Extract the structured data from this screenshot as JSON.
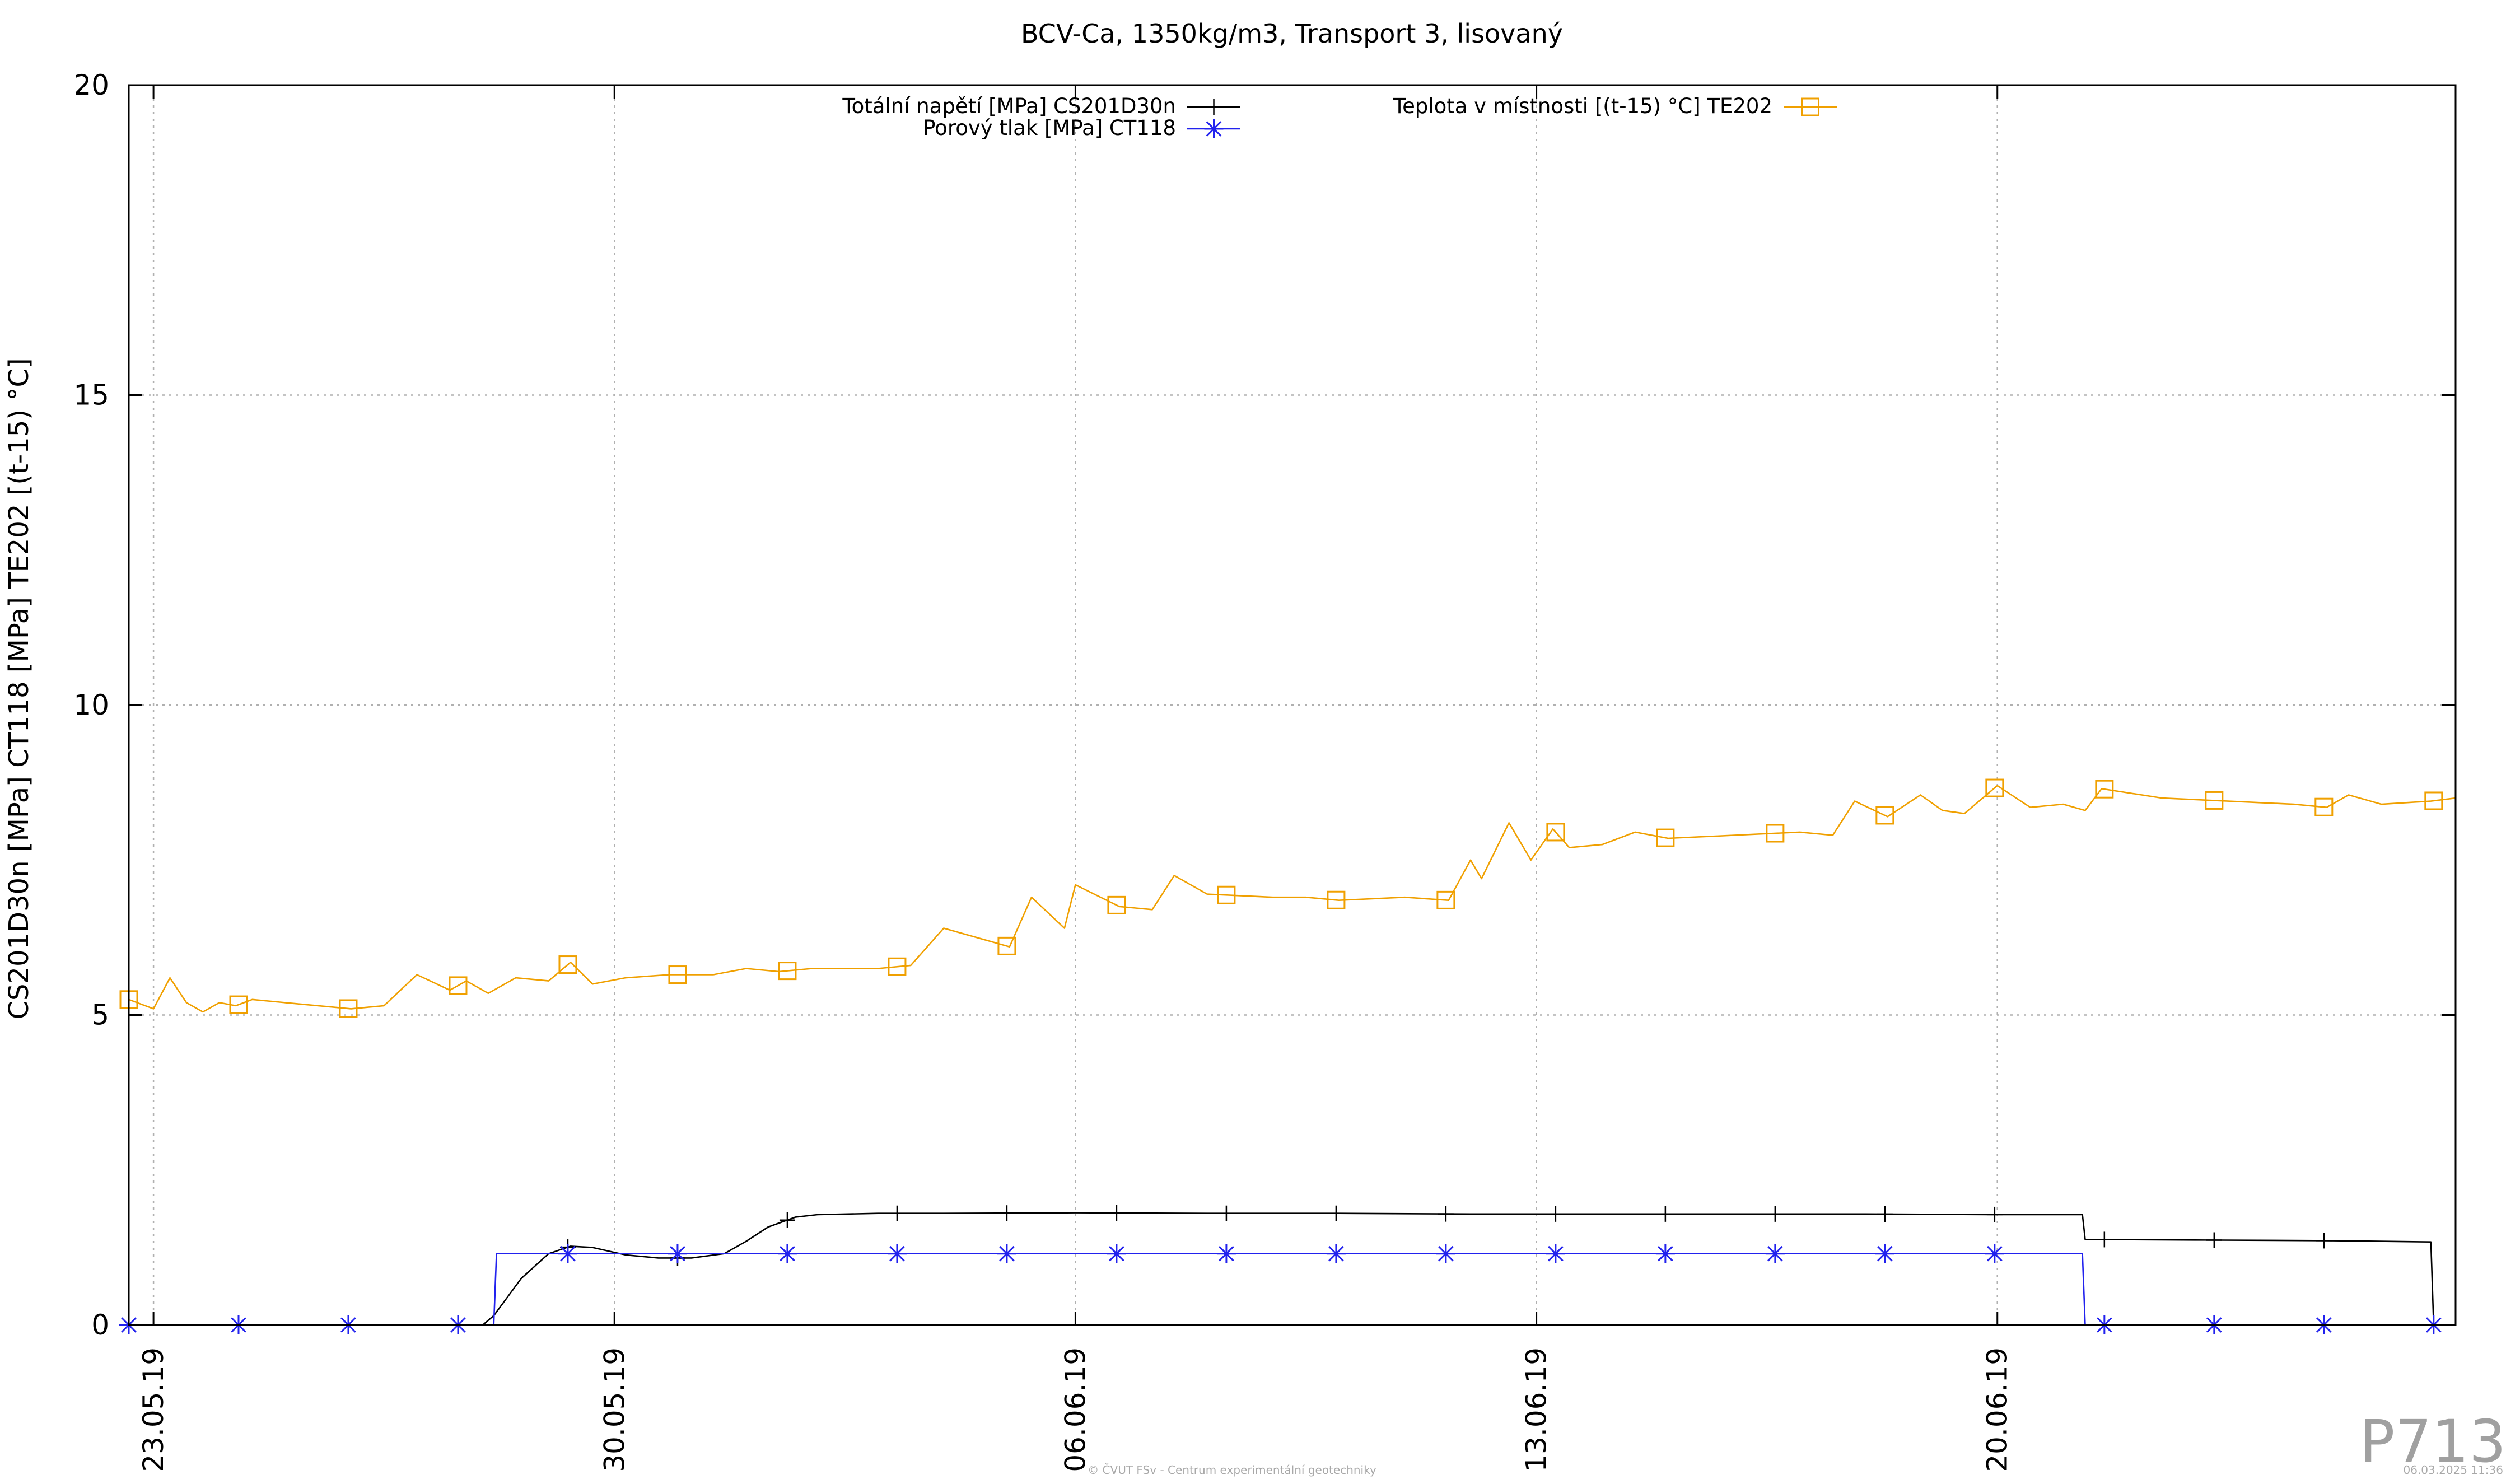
{
  "footer": {
    "copyright": "© ČVUT FSv - Centrum experimentální geotechniky",
    "timestamp": "06.03.2025 11:36",
    "watermark": "P713"
  },
  "chart_data": {
    "type": "line",
    "title": "BCV-Ca, 1350kg/m3, Transport 3, lisovaný",
    "ylabel": "CS201D30n [MPa] CT118 [MPa] TE202 [(t-15) °C]",
    "xlabel": "",
    "x_axis": {
      "type": "date",
      "min": "2019-05-22 15:00",
      "max": "2019-06-26 23:00"
    },
    "ylim": [
      0,
      20
    ],
    "yticks": [
      0,
      5,
      10,
      15,
      20
    ],
    "xticks": [
      {
        "value": "2019-05-23",
        "label": "23.05.19"
      },
      {
        "value": "2019-05-30",
        "label": "30.05.19"
      },
      {
        "value": "2019-06-06",
        "label": "06.06.19"
      },
      {
        "value": "2019-06-13",
        "label": "13.06.19"
      },
      {
        "value": "2019-06-20",
        "label": "20.06.19"
      }
    ],
    "grid": true,
    "legend_placement": "top",
    "series": [
      {
        "name": "Totální napětí [MPa] CS201D30n",
        "color": "#000000",
        "marker": "plus",
        "x": [
          "2019-05-22 15:00",
          "2019-05-24 00:00",
          "2019-05-26 00:00",
          "2019-05-28 00:00",
          "2019-05-28 04:00",
          "2019-05-28 14:00",
          "2019-05-29 00:00",
          "2019-05-29 08:00",
          "2019-05-29 16:00",
          "2019-05-30 04:00",
          "2019-05-30 16:00",
          "2019-05-31 04:00",
          "2019-05-31 16:00",
          "2019-06-01 00:00",
          "2019-06-01 08:00",
          "2019-06-01 18:00",
          "2019-06-02 02:00",
          "2019-06-03 00:00",
          "2019-06-04 00:00",
          "2019-06-06 00:00",
          "2019-06-08 00:00",
          "2019-06-10 00:00",
          "2019-06-12 00:00",
          "2019-06-14 00:00",
          "2019-06-16 00:00",
          "2019-06-18 00:00",
          "2019-06-20 00:00",
          "2019-06-21 07:00",
          "2019-06-21 08:00",
          "2019-06-23 00:00",
          "2019-06-25 00:00",
          "2019-06-26 14:00",
          "2019-06-26 15:00",
          "2019-06-26 23:00"
        ],
        "values": [
          0,
          0,
          0,
          0,
          0.15,
          0.75,
          1.15,
          1.27,
          1.25,
          1.13,
          1.08,
          1.08,
          1.15,
          1.35,
          1.58,
          1.74,
          1.78,
          1.8,
          1.8,
          1.81,
          1.8,
          1.8,
          1.79,
          1.79,
          1.79,
          1.79,
          1.78,
          1.78,
          1.38,
          1.37,
          1.36,
          1.34,
          0,
          0
        ]
      },
      {
        "name": "Porový tlak [MPa] CT118",
        "color": "#2222ee",
        "marker": "star",
        "x": [
          "2019-05-22 15:00",
          "2019-05-28 04:00",
          "2019-05-28 05:00",
          "2019-06-21 07:00",
          "2019-06-21 08:00",
          "2019-06-26 23:00"
        ],
        "values": [
          0,
          0,
          1.15,
          1.15,
          0,
          0
        ]
      },
      {
        "name": "Teplota v místnosti [(t-15) °C] TE202",
        "color": "#f0a000",
        "marker": "open-square",
        "x": [
          "2019-05-22 15:00",
          "2019-05-23 00:00",
          "2019-05-23 06:00",
          "2019-05-23 12:00",
          "2019-05-23 18:00",
          "2019-05-24 00:00",
          "2019-05-24 06:00",
          "2019-05-24 12:00",
          "2019-05-25 00:00",
          "2019-05-25 12:00",
          "2019-05-26 00:00",
          "2019-05-26 12:00",
          "2019-05-27 00:00",
          "2019-05-27 12:00",
          "2019-05-27 18:00",
          "2019-05-28 02:00",
          "2019-05-28 12:00",
          "2019-05-29 00:00",
          "2019-05-29 08:00",
          "2019-05-29 16:00",
          "2019-05-30 04:00",
          "2019-05-30 20:00",
          "2019-05-31 12:00",
          "2019-06-01 00:00",
          "2019-06-01 12:00",
          "2019-06-02 00:00",
          "2019-06-03 00:00",
          "2019-06-03 12:00",
          "2019-06-04 00:00",
          "2019-06-04 20:00",
          "2019-06-05 00:00",
          "2019-06-05 08:00",
          "2019-06-05 20:00",
          "2019-06-06 00:00",
          "2019-06-06 16:00",
          "2019-06-07 04:00",
          "2019-06-07 12:00",
          "2019-06-08 00:00",
          "2019-06-09 00:00",
          "2019-06-09 12:00",
          "2019-06-10 00:00",
          "2019-06-11 00:00",
          "2019-06-11 16:00",
          "2019-06-12 00:00",
          "2019-06-12 04:00",
          "2019-06-12 14:00",
          "2019-06-12 22:00",
          "2019-06-13 06:00",
          "2019-06-13 12:00",
          "2019-06-14 00:00",
          "2019-06-14 12:00",
          "2019-06-15 00:00",
          "2019-06-16 00:00",
          "2019-06-17 00:00",
          "2019-06-17 12:00",
          "2019-06-17 20:00",
          "2019-06-18 08:00",
          "2019-06-18 20:00",
          "2019-06-19 04:00",
          "2019-06-19 12:00",
          "2019-06-20 00:00",
          "2019-06-20 12:00",
          "2019-06-21 00:00",
          "2019-06-21 08:00",
          "2019-06-21 14:00",
          "2019-06-22 12:00",
          "2019-06-23 12:00",
          "2019-06-24 12:00",
          "2019-06-25 00:00",
          "2019-06-25 08:00",
          "2019-06-25 20:00",
          "2019-06-26 14:00",
          "2019-06-26 23:00"
        ],
        "values": [
          5.25,
          5.1,
          5.6,
          5.2,
          5.05,
          5.2,
          5.15,
          5.25,
          5.2,
          5.15,
          5.1,
          5.15,
          5.65,
          5.4,
          5.55,
          5.35,
          5.6,
          5.55,
          5.85,
          5.5,
          5.6,
          5.65,
          5.65,
          5.75,
          5.7,
          5.75,
          5.75,
          5.8,
          6.4,
          6.15,
          6.1,
          6.9,
          6.4,
          7.1,
          6.75,
          6.7,
          7.25,
          6.95,
          6.9,
          6.9,
          6.85,
          6.9,
          6.85,
          7.5,
          7.2,
          8.1,
          7.5,
          8.0,
          7.7,
          7.75,
          7.95,
          7.85,
          7.9,
          7.95,
          7.9,
          8.45,
          8.2,
          8.55,
          8.3,
          8.25,
          8.7,
          8.35,
          8.4,
          8.3,
          8.65,
          8.5,
          8.45,
          8.4,
          8.35,
          8.55,
          8.4,
          8.45,
          8.5
        ]
      }
    ]
  }
}
